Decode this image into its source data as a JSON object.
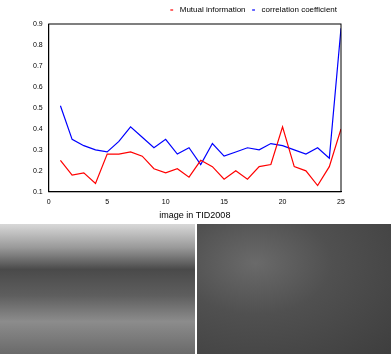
{
  "chart_data": {
    "type": "line",
    "x_label": "image in TID2008",
    "x": [
      1,
      2,
      3,
      4,
      5,
      6,
      7,
      8,
      9,
      10,
      11,
      12,
      13,
      14,
      15,
      16,
      17,
      18,
      19,
      20,
      21,
      22,
      23,
      24,
      25
    ],
    "series": [
      {
        "name": "Mutual information",
        "color": "#ff0000",
        "values": [
          0.25,
          0.18,
          0.19,
          0.14,
          0.28,
          0.28,
          0.29,
          0.27,
          0.21,
          0.19,
          0.21,
          0.17,
          0.25,
          0.22,
          0.16,
          0.2,
          0.16,
          0.22,
          0.23,
          0.41,
          0.22,
          0.2,
          0.13,
          0.22,
          0.4
        ]
      },
      {
        "name": "correlation coefficient",
        "color": "#0000ff",
        "values": [
          0.51,
          0.35,
          0.32,
          0.3,
          0.29,
          0.34,
          0.41,
          0.36,
          0.31,
          0.35,
          0.28,
          0.31,
          0.23,
          0.33,
          0.27,
          0.29,
          0.31,
          0.3,
          0.33,
          0.32,
          0.3,
          0.28,
          0.31,
          0.26,
          0.88
        ]
      }
    ],
    "xlim": [
      0,
      25
    ],
    "xticks": [
      0,
      5,
      10,
      15,
      20,
      25
    ],
    "ylim": [
      0.1,
      0.9
    ],
    "yticks": [
      0.1,
      0.2,
      0.3,
      0.4,
      0.5,
      0.6,
      0.7,
      0.8,
      0.9
    ],
    "grid": false,
    "legend": "upper right"
  }
}
